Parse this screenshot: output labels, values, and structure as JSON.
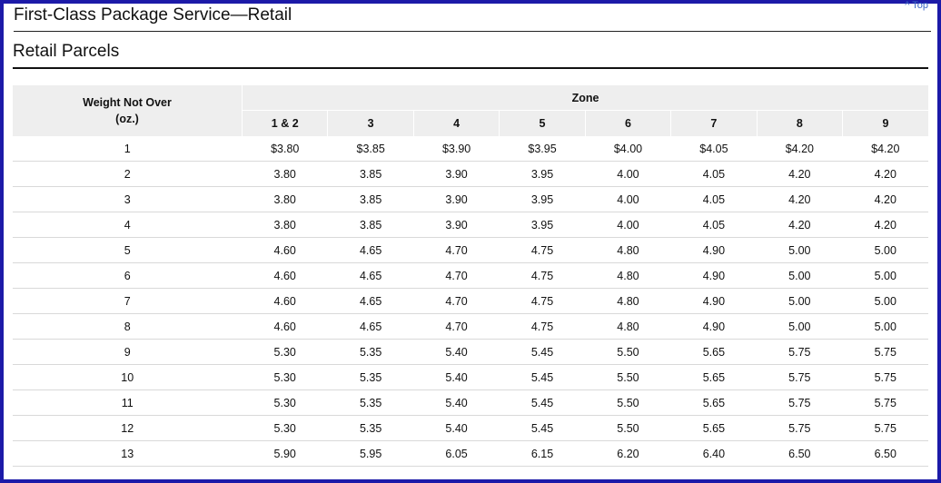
{
  "page": {
    "top_link": "^ Top",
    "title": "First-Class Package Service—Retail",
    "subtitle": "Retail Parcels"
  },
  "table": {
    "weight_header_line1": "Weight Not Over",
    "weight_header_line2": "(oz.)",
    "zone_header": "Zone",
    "zones": [
      "1 & 2",
      "3",
      "4",
      "5",
      "6",
      "7",
      "8",
      "9"
    ],
    "rows": [
      {
        "weight": "1",
        "prices": [
          "$3.80",
          "$3.85",
          "$3.90",
          "$3.95",
          "$4.00",
          "$4.05",
          "$4.20",
          "$4.20"
        ]
      },
      {
        "weight": "2",
        "prices": [
          "3.80",
          "3.85",
          "3.90",
          "3.95",
          "4.00",
          "4.05",
          "4.20",
          "4.20"
        ]
      },
      {
        "weight": "3",
        "prices": [
          "3.80",
          "3.85",
          "3.90",
          "3.95",
          "4.00",
          "4.05",
          "4.20",
          "4.20"
        ]
      },
      {
        "weight": "4",
        "prices": [
          "3.80",
          "3.85",
          "3.90",
          "3.95",
          "4.00",
          "4.05",
          "4.20",
          "4.20"
        ]
      },
      {
        "weight": "5",
        "prices": [
          "4.60",
          "4.65",
          "4.70",
          "4.75",
          "4.80",
          "4.90",
          "5.00",
          "5.00"
        ]
      },
      {
        "weight": "6",
        "prices": [
          "4.60",
          "4.65",
          "4.70",
          "4.75",
          "4.80",
          "4.90",
          "5.00",
          "5.00"
        ]
      },
      {
        "weight": "7",
        "prices": [
          "4.60",
          "4.65",
          "4.70",
          "4.75",
          "4.80",
          "4.90",
          "5.00",
          "5.00"
        ]
      },
      {
        "weight": "8",
        "prices": [
          "4.60",
          "4.65",
          "4.70",
          "4.75",
          "4.80",
          "4.90",
          "5.00",
          "5.00"
        ]
      },
      {
        "weight": "9",
        "prices": [
          "5.30",
          "5.35",
          "5.40",
          "5.45",
          "5.50",
          "5.65",
          "5.75",
          "5.75"
        ]
      },
      {
        "weight": "10",
        "prices": [
          "5.30",
          "5.35",
          "5.40",
          "5.45",
          "5.50",
          "5.65",
          "5.75",
          "5.75"
        ]
      },
      {
        "weight": "11",
        "prices": [
          "5.30",
          "5.35",
          "5.40",
          "5.45",
          "5.50",
          "5.65",
          "5.75",
          "5.75"
        ]
      },
      {
        "weight": "12",
        "prices": [
          "5.30",
          "5.35",
          "5.40",
          "5.45",
          "5.50",
          "5.65",
          "5.75",
          "5.75"
        ]
      },
      {
        "weight": "13",
        "prices": [
          "5.90",
          "5.95",
          "6.05",
          "6.15",
          "6.20",
          "6.40",
          "6.50",
          "6.50"
        ]
      }
    ]
  }
}
